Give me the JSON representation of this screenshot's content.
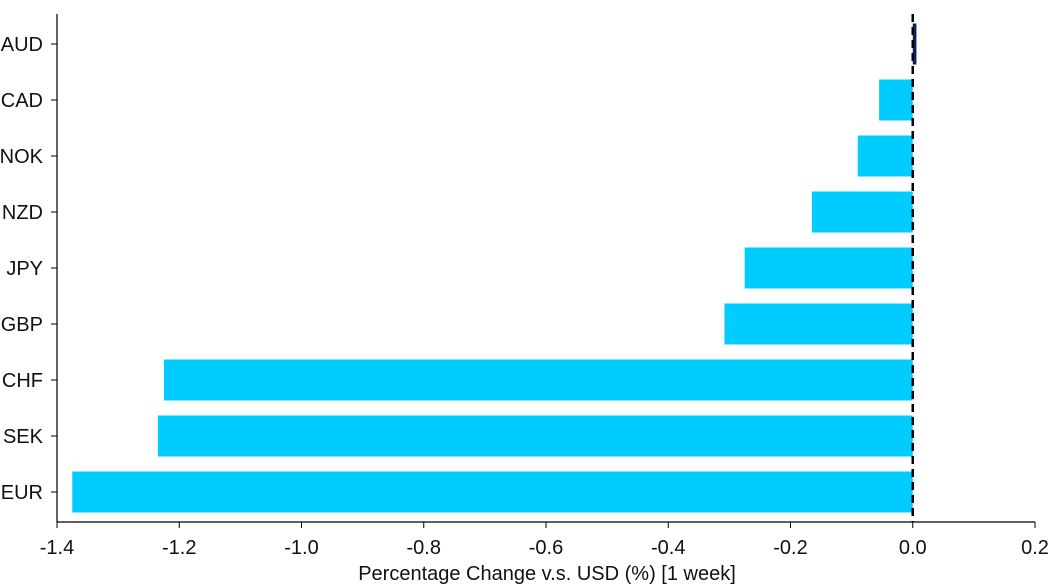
{
  "chart_data": {
    "type": "bar",
    "orientation": "horizontal",
    "categories": [
      "AUD",
      "CAD",
      "NOK",
      "NZD",
      "JPY",
      "GBP",
      "CHF",
      "SEK",
      "EUR"
    ],
    "values": [
      0.006,
      -0.055,
      -0.09,
      -0.165,
      -0.275,
      -0.308,
      -1.225,
      -1.235,
      -1.375
    ],
    "xlabel": "Percentage Change v.s. USD (%) [1 week]",
    "ylabel": "",
    "xlim": [
      -1.4,
      0.2
    ],
    "xticks": [
      -1.4,
      -1.2,
      -1.0,
      -0.8,
      -0.6,
      -0.4,
      -0.2,
      0.0,
      0.2
    ],
    "xtick_labels": [
      "-1.4",
      "-1.2",
      "-1.0",
      "-0.8",
      "-0.6",
      "-0.4",
      "-0.2",
      "0.0",
      "0.2"
    ],
    "grid": false,
    "zero_line": "dashed",
    "colors": {
      "negative": "#00ccff",
      "positive": "#0a1f5c",
      "axis": "#000000",
      "zero_line": "#000000"
    }
  }
}
